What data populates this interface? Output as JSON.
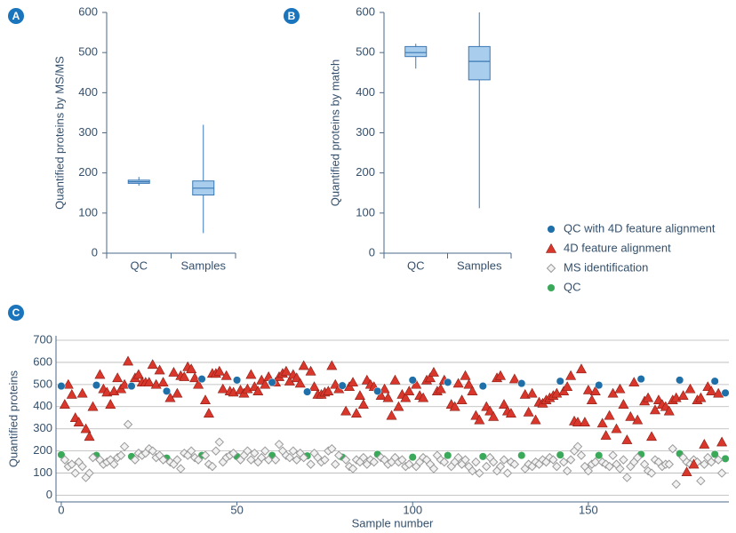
{
  "chart_data": [
    {
      "type": "box",
      "panel_label": "A",
      "ylabel": "Quantified proteins by MS/MS",
      "categories": [
        "QC",
        "Samples"
      ],
      "boxes": [
        {
          "whislo": 168,
          "q1": 174,
          "med": 178,
          "q3": 182,
          "whishi": 190
        },
        {
          "whislo": 50,
          "q1": 145,
          "med": 162,
          "q3": 180,
          "whishi": 320
        }
      ],
      "ylim": [
        0,
        600
      ],
      "yticks": [
        0,
        100,
        200,
        300,
        400,
        500,
        600
      ],
      "color": "#a9cdec",
      "edge_color": "#3a78b5"
    },
    {
      "type": "box",
      "panel_label": "B",
      "ylabel": "Quantified proteins by match",
      "categories": [
        "QC",
        "Samples"
      ],
      "boxes": [
        {
          "whislo": 460,
          "q1": 490,
          "med": 500,
          "q3": 515,
          "whishi": 522
        },
        {
          "whislo": 112,
          "q1": 432,
          "med": 478,
          "q3": 515,
          "whishi": 600
        }
      ],
      "ylim": [
        0,
        600
      ],
      "yticks": [
        0,
        100,
        200,
        300,
        400,
        500,
        600
      ],
      "color": "#a9cdec",
      "edge_color": "#3a78b5"
    },
    {
      "type": "scatter",
      "panel_label": "C",
      "xlabel": "Sample number",
      "ylabel": "Quantified proteins",
      "xlim": [
        -1.5,
        190
      ],
      "xticks": [
        0,
        50,
        100,
        150
      ],
      "ylim": [
        -30,
        720
      ],
      "yticks": [
        0,
        100,
        200,
        300,
        400,
        500,
        600,
        700
      ],
      "grid": true,
      "legend": "upper right outside",
      "series": [
        {
          "name": "QC with 4D feature alignment",
          "color": "#1f6fa8",
          "marker": "circle",
          "x": [
            0,
            10,
            20,
            30,
            40,
            50,
            60,
            70,
            80,
            90,
            100,
            110,
            120,
            131,
            142,
            153,
            165,
            176,
            186,
            189
          ],
          "values": [
            493,
            497,
            493,
            470,
            525,
            520,
            510,
            467,
            495,
            470,
            520,
            510,
            493,
            505,
            515,
            497,
            525,
            520,
            515,
            462
          ]
        },
        {
          "name": "4D feature alignment",
          "color": "#d9372b",
          "marker": "triangle",
          "x": [
            1,
            2,
            3,
            4,
            5,
            6,
            7,
            8,
            9,
            11,
            12,
            13,
            14,
            15,
            16,
            17,
            18,
            19,
            21,
            22,
            23,
            24,
            25,
            26,
            27,
            28,
            29,
            31,
            32,
            33,
            34,
            35,
            36,
            37,
            38,
            39,
            41,
            42,
            43,
            44,
            45,
            46,
            47,
            48,
            49,
            51,
            52,
            53,
            54,
            55,
            56,
            57,
            58,
            59,
            61,
            62,
            63,
            64,
            65,
            66,
            67,
            68,
            69,
            71,
            72,
            73,
            74,
            75,
            76,
            77,
            78,
            79,
            81,
            82,
            83,
            84,
            85,
            86,
            87,
            88,
            89,
            91,
            92,
            93,
            94,
            95,
            96,
            97,
            98,
            99,
            101,
            102,
            103,
            104,
            105,
            106,
            107,
            108,
            109,
            111,
            112,
            113,
            114,
            115,
            116,
            117,
            118,
            119,
            121,
            122,
            123,
            124,
            125,
            126,
            127,
            128,
            129,
            132,
            133,
            134,
            135,
            136,
            137,
            138,
            139,
            140,
            141,
            143,
            144,
            145,
            146,
            147,
            148,
            149,
            150,
            151,
            152,
            154,
            155,
            156,
            157,
            158,
            159,
            160,
            161,
            162,
            163,
            164,
            166,
            167,
            168,
            169,
            170,
            171,
            172,
            173,
            174,
            175,
            177,
            178,
            179,
            180,
            181,
            182,
            183,
            184,
            185,
            187,
            188
          ],
          "values": [
            410,
            500,
            455,
            350,
            330,
            460,
            300,
            265,
            400,
            545,
            480,
            465,
            410,
            470,
            530,
            480,
            500,
            605,
            530,
            545,
            510,
            510,
            510,
            590,
            500,
            565,
            510,
            440,
            555,
            460,
            540,
            535,
            580,
            570,
            530,
            500,
            430,
            370,
            550,
            550,
            560,
            480,
            540,
            470,
            465,
            475,
            460,
            480,
            545,
            490,
            470,
            520,
            500,
            535,
            510,
            535,
            550,
            560,
            515,
            545,
            530,
            505,
            585,
            560,
            490,
            455,
            455,
            465,
            470,
            585,
            500,
            480,
            380,
            490,
            510,
            370,
            450,
            410,
            520,
            500,
            490,
            450,
            480,
            440,
            360,
            520,
            400,
            455,
            440,
            470,
            500,
            450,
            440,
            520,
            530,
            555,
            470,
            480,
            520,
            410,
            400,
            505,
            430,
            540,
            500,
            470,
            360,
            340,
            400,
            380,
            355,
            530,
            540,
            410,
            380,
            370,
            525,
            455,
            375,
            460,
            340,
            420,
            415,
            430,
            440,
            450,
            460,
            470,
            490,
            540,
            335,
            330,
            570,
            330,
            475,
            430,
            470,
            325,
            270,
            360,
            460,
            300,
            480,
            410,
            250,
            355,
            510,
            340,
            425,
            440,
            265,
            385,
            430,
            410,
            400,
            380,
            430,
            440,
            450,
            105,
            480,
            140,
            430,
            440,
            230,
            490,
            470,
            460,
            240
          ]
        },
        {
          "name": "MS identification",
          "color": "#9a9a9a",
          "marker": "diamond",
          "x": [
            1,
            2,
            3,
            4,
            5,
            6,
            7,
            8,
            9,
            11,
            12,
            13,
            14,
            15,
            16,
            17,
            18,
            19,
            21,
            22,
            23,
            24,
            25,
            26,
            27,
            28,
            29,
            31,
            32,
            33,
            34,
            35,
            36,
            37,
            38,
            39,
            41,
            42,
            43,
            44,
            45,
            46,
            47,
            48,
            49,
            51,
            52,
            53,
            54,
            55,
            56,
            57,
            58,
            59,
            61,
            62,
            63,
            64,
            65,
            66,
            67,
            68,
            69,
            71,
            72,
            73,
            74,
            75,
            76,
            77,
            78,
            79,
            81,
            82,
            83,
            84,
            85,
            86,
            87,
            88,
            89,
            91,
            92,
            93,
            94,
            95,
            96,
            97,
            98,
            99,
            101,
            102,
            103,
            104,
            105,
            106,
            107,
            108,
            109,
            111,
            112,
            113,
            114,
            115,
            116,
            117,
            118,
            119,
            121,
            122,
            123,
            124,
            125,
            126,
            127,
            128,
            129,
            132,
            133,
            134,
            135,
            136,
            137,
            138,
            139,
            140,
            141,
            143,
            144,
            145,
            146,
            147,
            148,
            149,
            150,
            151,
            152,
            154,
            155,
            156,
            157,
            158,
            159,
            160,
            161,
            162,
            163,
            164,
            166,
            167,
            168,
            169,
            170,
            171,
            172,
            173,
            174,
            175,
            177,
            178,
            179,
            180,
            181,
            182,
            183,
            184,
            185,
            187,
            188
          ],
          "values": [
            160,
            130,
            140,
            100,
            150,
            130,
            80,
            100,
            170,
            160,
            140,
            150,
            160,
            140,
            170,
            180,
            220,
            320,
            160,
            190,
            180,
            190,
            210,
            200,
            170,
            180,
            160,
            150,
            140,
            160,
            120,
            190,
            180,
            200,
            170,
            160,
            180,
            140,
            130,
            200,
            240,
            150,
            170,
            180,
            190,
            160,
            180,
            200,
            160,
            190,
            150,
            170,
            200,
            160,
            160,
            230,
            200,
            180,
            170,
            200,
            160,
            190,
            170,
            140,
            190,
            170,
            150,
            160,
            200,
            210,
            140,
            180,
            160,
            130,
            120,
            160,
            150,
            170,
            140,
            160,
            150,
            170,
            160,
            140,
            150,
            170,
            150,
            160,
            130,
            140,
            130,
            150,
            170,
            160,
            140,
            120,
            180,
            160,
            150,
            130,
            150,
            170,
            140,
            160,
            130,
            110,
            150,
            100,
            130,
            170,
            150,
            110,
            130,
            160,
            100,
            150,
            140,
            120,
            140,
            130,
            150,
            140,
            160,
            150,
            170,
            160,
            130,
            150,
            110,
            160,
            200,
            220,
            180,
            130,
            110,
            140,
            150,
            150,
            140,
            130,
            180,
            140,
            120,
            160,
            80,
            130,
            150,
            170,
            140,
            110,
            100,
            160,
            150,
            130,
            140,
            140,
            210,
            50,
            170,
            150,
            140,
            160,
            150,
            65,
            140,
            170,
            150,
            160,
            100
          ]
        },
        {
          "name": "QC",
          "color": "#3aaa5a",
          "marker": "circle",
          "x": [
            0,
            10,
            20,
            30,
            40,
            50,
            60,
            70,
            80,
            90,
            100,
            110,
            120,
            131,
            142,
            153,
            165,
            176,
            186,
            189
          ],
          "values": [
            183,
            180,
            175,
            168,
            180,
            175,
            180,
            178,
            172,
            185,
            172,
            180,
            175,
            180,
            182,
            180,
            185,
            188,
            185,
            165
          ]
        }
      ]
    }
  ]
}
